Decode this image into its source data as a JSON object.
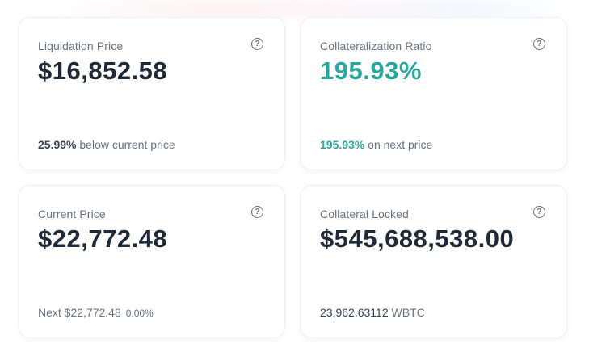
{
  "cards": {
    "liquidation": {
      "label": "Liquidation Price",
      "value": "$16,852.58",
      "footer_highlight": "25.99%",
      "footer_text": " below current price"
    },
    "collateralization": {
      "label": "Collateralization Ratio",
      "value": "195.93%",
      "footer_highlight": "195.93%",
      "footer_text": " on next price"
    },
    "current_price": {
      "label": "Current Price",
      "value": "$22,772.48",
      "footer_text": "Next $22,772.48",
      "footer_change": "0.00%"
    },
    "collateral_locked": {
      "label": "Collateral Locked",
      "value": "$545,688,538.00",
      "footer_highlight": "23,962.63112",
      "footer_text": " WBTC"
    }
  },
  "icons": {
    "help": "help-circle-icon"
  },
  "colors": {
    "positive": "#2aa69a",
    "text_primary": "#1f2937",
    "text_muted": "#6b7280"
  }
}
